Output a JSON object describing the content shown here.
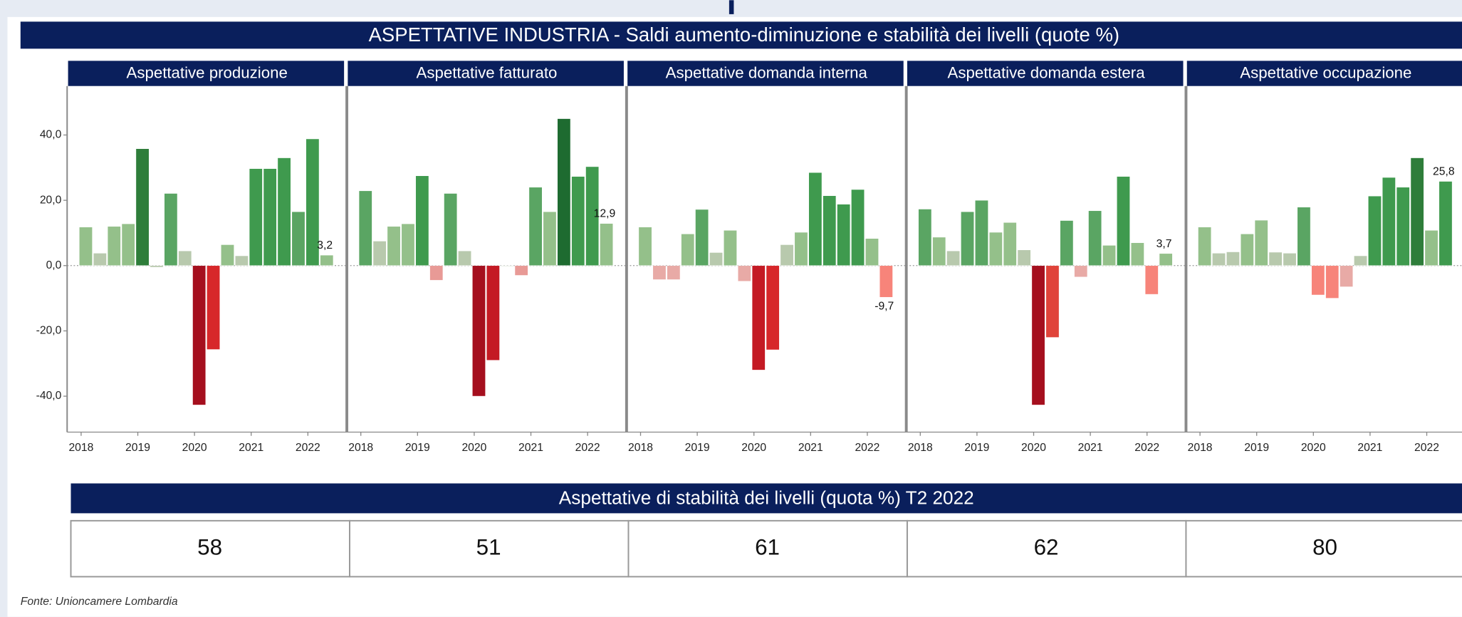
{
  "title": "ASPETTATIVE INDUSTRIA - Saldi aumento-diminuzione e stabilità dei livelli (quote %)",
  "chart_data": [
    {
      "type": "bar",
      "title": "Aspettative produzione",
      "categories": [
        "2018",
        null,
        null,
        null,
        "2019",
        null,
        null,
        null,
        "2020",
        null,
        null,
        null,
        "2021",
        null,
        null,
        null,
        "2022",
        null
      ],
      "values": [
        11.8,
        3.8,
        12.0,
        12.8,
        35.8,
        -0.5,
        22.1,
        4.5,
        -42.7,
        -25.7,
        6.4,
        3.0,
        29.7,
        29.7,
        33.0,
        16.5,
        38.8,
        3.2
      ],
      "value_labels": [
        null,
        null,
        null,
        null,
        null,
        null,
        null,
        null,
        null,
        null,
        null,
        null,
        null,
        null,
        null,
        null,
        null,
        "3,2"
      ],
      "colors": [
        "#94c08a",
        "#b8c9ad",
        "#94c08a",
        "#94c08a",
        "#2e7d3a",
        "#b8c9ad",
        "#5aa563",
        "#b8c9ad",
        "#a50f1e",
        "#d7272a",
        "#94c08a",
        "#b8c9ad",
        "#3f9a4e",
        "#3f9a4e",
        "#3f9a4e",
        "#5aa563",
        "#3f9a4e",
        "#94c08a"
      ],
      "ylim": [
        -51,
        55
      ],
      "yticks": [
        {
          "value": -40,
          "label": "-40,0"
        },
        {
          "value": -20,
          "label": "-20,0"
        },
        {
          "value": 0,
          "label": "0,0"
        },
        {
          "value": 20,
          "label": "20,0"
        },
        {
          "value": 40,
          "label": "40,0"
        }
      ]
    },
    {
      "type": "bar",
      "title": "Aspettative fatturato",
      "categories": [
        "2018",
        null,
        null,
        null,
        "2019",
        null,
        null,
        null,
        "2020",
        null,
        null,
        null,
        "2021",
        null,
        null,
        null,
        "2022",
        null
      ],
      "values": [
        22.9,
        7.5,
        12.0,
        12.8,
        27.5,
        -4.5,
        22.1,
        4.5,
        -40.0,
        -29.0,
        0,
        -3.0,
        24.0,
        16.5,
        45.0,
        27.3,
        30.3,
        12.9
      ],
      "value_labels": [
        null,
        null,
        null,
        null,
        null,
        null,
        null,
        null,
        null,
        null,
        null,
        null,
        null,
        null,
        null,
        null,
        null,
        "12,9"
      ],
      "colors": [
        "#5aa563",
        "#b8c9ad",
        "#94c08a",
        "#94c08a",
        "#3f9a4e",
        "#e89a96",
        "#5aa563",
        "#b8c9ad",
        "#a50f1e",
        "#c41a24",
        "#b8c9ad",
        "#e89a96",
        "#5aa563",
        "#94c08a",
        "#1e6b30",
        "#3f9a4e",
        "#3f9a4e",
        "#94c08a"
      ],
      "ylim": [
        -51,
        55
      ]
    },
    {
      "type": "bar",
      "title": "Aspettative domanda interna",
      "categories": [
        "2018",
        null,
        null,
        null,
        "2019",
        null,
        null,
        null,
        "2020",
        null,
        null,
        null,
        "2021",
        null,
        null,
        null,
        "2022",
        null
      ],
      "values": [
        11.8,
        -4.3,
        -4.3,
        9.7,
        17.2,
        4.0,
        10.8,
        -4.8,
        -32.0,
        -25.8,
        6.4,
        10.2,
        28.5,
        21.4,
        18.8,
        23.3,
        8.3,
        -9.7
      ],
      "value_labels": [
        null,
        null,
        null,
        null,
        null,
        null,
        null,
        null,
        null,
        null,
        null,
        null,
        null,
        null,
        null,
        null,
        null,
        "-9,7"
      ],
      "colors": [
        "#94c08a",
        "#e8aaa6",
        "#e8aaa6",
        "#94c08a",
        "#5aa563",
        "#b8c9ad",
        "#94c08a",
        "#e8aaa6",
        "#c41a24",
        "#d7272a",
        "#b8c9ad",
        "#94c08a",
        "#3f9a4e",
        "#3f9a4e",
        "#3f9a4e",
        "#3f9a4e",
        "#94c08a",
        "#f7847a"
      ],
      "ylim": [
        -51,
        55
      ]
    },
    {
      "type": "bar",
      "title": "Aspettative domanda estera",
      "categories": [
        "2018",
        null,
        null,
        null,
        "2019",
        null,
        null,
        null,
        "2020",
        null,
        null,
        null,
        "2021",
        null,
        null,
        null,
        "2022",
        null
      ],
      "values": [
        17.3,
        8.7,
        4.5,
        16.5,
        20.0,
        10.2,
        13.2,
        4.8,
        -42.7,
        -22.0,
        13.8,
        -3.5,
        16.8,
        6.2,
        27.3,
        7.0,
        -8.8,
        3.7
      ],
      "value_labels": [
        null,
        null,
        null,
        null,
        null,
        null,
        null,
        null,
        null,
        null,
        null,
        null,
        null,
        null,
        null,
        null,
        null,
        "3,7"
      ],
      "colors": [
        "#5aa563",
        "#94c08a",
        "#b8c9ad",
        "#5aa563",
        "#5aa563",
        "#94c08a",
        "#94c08a",
        "#b8c9ad",
        "#a50f1e",
        "#e0433a",
        "#5aa563",
        "#e8aaa6",
        "#5aa563",
        "#94c08a",
        "#3f9a4e",
        "#94c08a",
        "#f7847a",
        "#94c08a"
      ],
      "ylim": [
        -51,
        55
      ]
    },
    {
      "type": "bar",
      "title": "Aspettative occupazione",
      "categories": [
        "2018",
        null,
        null,
        null,
        "2019",
        null,
        null,
        null,
        "2020",
        null,
        null,
        null,
        "2021",
        null,
        null,
        null,
        "2022",
        null
      ],
      "values": [
        11.8,
        3.8,
        4.2,
        9.7,
        13.9,
        4.1,
        3.8,
        17.9,
        -9.0,
        -10.0,
        -6.5,
        3.0,
        21.3,
        27.0,
        24.0,
        33.0,
        10.8,
        25.8
      ],
      "value_labels": [
        null,
        null,
        null,
        null,
        null,
        null,
        null,
        null,
        null,
        null,
        null,
        null,
        null,
        null,
        null,
        null,
        null,
        "25,8"
      ],
      "colors": [
        "#94c08a",
        "#b8c9ad",
        "#b8c9ad",
        "#94c08a",
        "#94c08a",
        "#b8c9ad",
        "#b8c9ad",
        "#5aa563",
        "#f7847a",
        "#f7847a",
        "#e8aaa6",
        "#b8c9ad",
        "#3f9a4e",
        "#3f9a4e",
        "#3f9a4e",
        "#2e7d3a",
        "#94c08a",
        "#3f9a4e"
      ],
      "ylim": [
        -51,
        55
      ]
    }
  ],
  "stability": {
    "title": "Aspettative di stabilità dei livelli (quota %) T2 2022",
    "values": [
      58,
      51,
      61,
      62,
      80
    ]
  },
  "source": "Fonte: Unioncamere Lombardia"
}
